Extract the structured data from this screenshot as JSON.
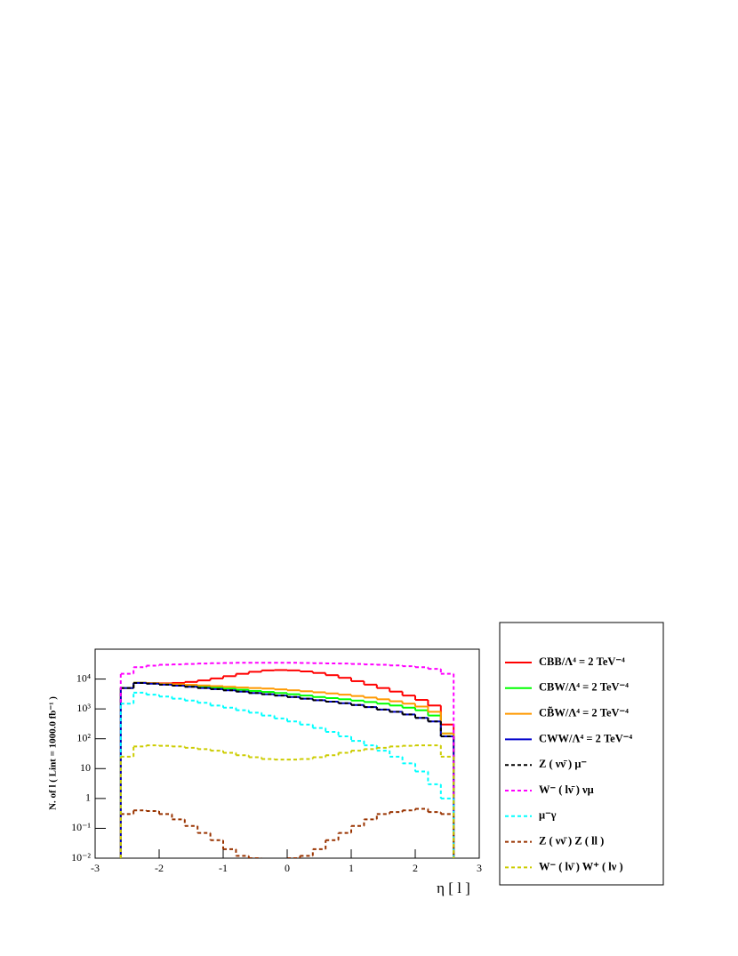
{
  "chart_data": {
    "type": "histogram",
    "x_label": "η [ l ]",
    "y_label": "N. of l ( Lint = 1000.0 fb⁻¹ )",
    "log_y": true,
    "xlim": [
      -3,
      3
    ],
    "ylim": [
      0.01,
      100000
    ],
    "xticks": [
      -3,
      -2,
      -1,
      0,
      1,
      2,
      3
    ],
    "yticks": [
      {
        "value": 0.01,
        "label": "10⁻²"
      },
      {
        "value": 0.1,
        "label": "10⁻¹"
      },
      1,
      10,
      {
        "value": 100,
        "label": "10²"
      },
      {
        "value": 1000,
        "label": "10³"
      },
      {
        "value": 10000,
        "label": "10⁴"
      }
    ],
    "legend": "outside-right",
    "bins": [
      -2.6,
      -2.4,
      -2.2,
      -2.0,
      -1.8,
      -1.6,
      -1.4,
      -1.2,
      -1.0,
      -0.8,
      -0.6,
      -0.4,
      -0.2,
      0.0,
      0.2,
      0.4,
      0.6,
      0.8,
      1.0,
      1.2,
      1.4,
      1.6,
      1.8,
      2.0,
      2.2,
      2.4,
      2.6
    ],
    "series": [
      {
        "name": "CBB/Λ⁴ = 2 TeV⁻⁴",
        "color": "#ff0000",
        "dashed": false,
        "values": [
          5000,
          7500,
          7300,
          7200,
          7400,
          8000,
          9000,
          10500,
          12500,
          15000,
          17500,
          19500,
          20000,
          19500,
          18000,
          16000,
          13500,
          11000,
          8500,
          6500,
          5000,
          3800,
          2800,
          2000,
          1300,
          300
        ]
      },
      {
        "name": "CBW/Λ⁴ = 2 TeV⁻⁴",
        "color": "#00ff00",
        "dashed": false,
        "values": [
          5000,
          7500,
          7200,
          6800,
          6400,
          6000,
          5600,
          5200,
          4800,
          4400,
          4000,
          3700,
          3400,
          3100,
          2800,
          2500,
          2300,
          2100,
          1900,
          1700,
          1500,
          1300,
          1100,
          900,
          600,
          150
        ]
      },
      {
        "name": "CB̃W/Λ⁴ = 2 TeV⁻⁴",
        "color": "#ff9900",
        "dashed": false,
        "values": [
          5000,
          7500,
          7300,
          7000,
          6700,
          6400,
          6100,
          5800,
          5500,
          5200,
          5000,
          4800,
          4500,
          4200,
          3900,
          3600,
          3300,
          3000,
          2700,
          2400,
          2100,
          1800,
          1500,
          1200,
          800,
          150
        ]
      },
      {
        "name": "CWW/Λ⁴ = 2 TeV⁻⁴",
        "color": "#0000cc",
        "dashed": false,
        "values": [
          5000,
          7400,
          7000,
          6500,
          6000,
          5500,
          5000,
          4600,
          4200,
          3800,
          3400,
          3100,
          2800,
          2500,
          2200,
          1950,
          1750,
          1550,
          1350,
          1150,
          950,
          800,
          650,
          500,
          380,
          120
        ]
      },
      {
        "name": "Z ( νν̄ )  μ⁻",
        "color": "#000000",
        "dashed": true,
        "values": [
          5000,
          7400,
          7000,
          6500,
          6000,
          5500,
          5000,
          4600,
          4200,
          3800,
          3400,
          3100,
          2800,
          2500,
          2200,
          1950,
          1750,
          1550,
          1350,
          1150,
          950,
          800,
          650,
          500,
          380,
          120
        ]
      },
      {
        "name": "W⁻ ( lν̄ )  νμ",
        "color": "#ff00ff",
        "dashed": true,
        "values": [
          15000,
          25000,
          28000,
          30000,
          31000,
          32000,
          33000,
          34000,
          34500,
          35000,
          35000,
          35000,
          35000,
          35000,
          34500,
          34000,
          33500,
          33000,
          32000,
          31000,
          30000,
          28500,
          27000,
          25000,
          22000,
          15000
        ]
      },
      {
        "name": "μ⁻γ",
        "color": "#00ffff",
        "dashed": true,
        "values": [
          1500,
          3500,
          3000,
          2600,
          2200,
          1900,
          1600,
          1300,
          1100,
          900,
          750,
          600,
          480,
          380,
          300,
          230,
          170,
          120,
          85,
          60,
          40,
          25,
          15,
          8,
          3,
          1
        ]
      },
      {
        "name": "Z ( νν̄ ) Z ( ll )",
        "color": "#993300",
        "dashed": true,
        "values": [
          0.3,
          0.4,
          0.38,
          0.3,
          0.2,
          0.12,
          0.07,
          0.04,
          0.02,
          0.012,
          0.01,
          0.008,
          0.008,
          0.01,
          0.012,
          0.02,
          0.04,
          0.07,
          0.12,
          0.2,
          0.3,
          0.35,
          0.4,
          0.45,
          0.35,
          0.3
        ]
      },
      {
        "name": "W⁻ ( lν̄ ) W⁺ ( lν )",
        "color": "#cccc00",
        "dashed": true,
        "values": [
          25,
          55,
          60,
          58,
          55,
          50,
          45,
          40,
          34,
          28,
          24,
          21,
          20,
          20,
          21,
          24,
          28,
          34,
          40,
          45,
          50,
          55,
          58,
          60,
          60,
          25
        ]
      }
    ]
  }
}
